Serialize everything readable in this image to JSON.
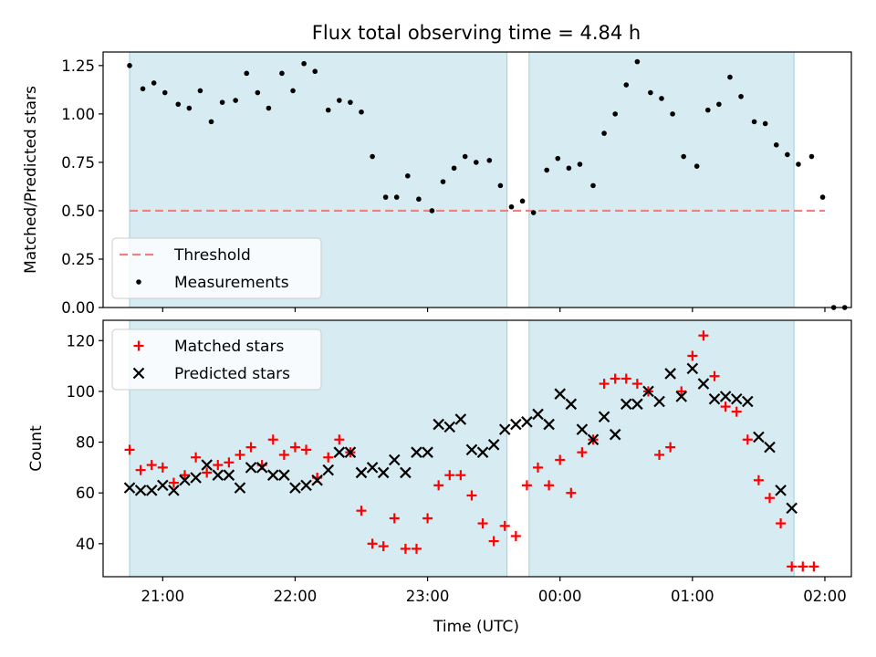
{
  "chart_data": [
    {
      "type": "scatter",
      "title": "Flux total observing time = 4.84 h",
      "ylabel": "Matched/Predicted stars",
      "xlabel": "",
      "xlim": [
        "20:33",
        "02:12"
      ],
      "ylim": [
        0,
        1.32
      ],
      "yticks": [
        "0.00",
        "0.25",
        "0.50",
        "0.75",
        "1.00",
        "1.25"
      ],
      "shaded_intervals": [
        [
          "20:45",
          "23:36"
        ],
        [
          "23:46",
          "01:46"
        ]
      ],
      "threshold": 0.5,
      "threshold_span": [
        "20:45",
        "02:00"
      ],
      "legend": {
        "position": "lower-left",
        "entries": [
          "Threshold",
          "Measurements"
        ]
      },
      "series": [
        {
          "name": "Measurements",
          "style": "dot",
          "color": "#000000",
          "points": [
            [
              "20:45",
              1.25
            ],
            [
              "20:51",
              1.13
            ],
            [
              "20:56",
              1.16
            ],
            [
              "21:01",
              1.11
            ],
            [
              "21:07",
              1.05
            ],
            [
              "21:12",
              1.03
            ],
            [
              "21:17",
              1.12
            ],
            [
              "21:22",
              0.96
            ],
            [
              "21:27",
              1.06
            ],
            [
              "21:33",
              1.07
            ],
            [
              "21:38",
              1.21
            ],
            [
              "21:43",
              1.11
            ],
            [
              "21:48",
              1.03
            ],
            [
              "21:54",
              1.21
            ],
            [
              "21:59",
              1.12
            ],
            [
              "22:04",
              1.26
            ],
            [
              "22:09",
              1.22
            ],
            [
              "22:15",
              1.02
            ],
            [
              "22:20",
              1.07
            ],
            [
              "22:25",
              1.06
            ],
            [
              "22:30",
              1.01
            ],
            [
              "22:35",
              0.78
            ],
            [
              "22:41",
              0.57
            ],
            [
              "22:46",
              0.57
            ],
            [
              "22:51",
              0.68
            ],
            [
              "22:56",
              0.56
            ],
            [
              "23:02",
              0.5
            ],
            [
              "23:07",
              0.65
            ],
            [
              "23:12",
              0.72
            ],
            [
              "23:17",
              0.78
            ],
            [
              "23:22",
              0.75
            ],
            [
              "23:28",
              0.76
            ],
            [
              "23:33",
              0.63
            ],
            [
              "23:38",
              0.52
            ],
            [
              "23:43",
              0.55
            ],
            [
              "23:48",
              0.49
            ],
            [
              "23:54",
              0.71
            ],
            [
              "23:59",
              0.77
            ],
            [
              "00:04",
              0.72
            ],
            [
              "00:09",
              0.74
            ],
            [
              "00:15",
              0.63
            ],
            [
              "00:20",
              0.9
            ],
            [
              "00:25",
              1.0
            ],
            [
              "00:30",
              1.15
            ],
            [
              "00:35",
              1.27
            ],
            [
              "00:41",
              1.11
            ],
            [
              "00:46",
              1.08
            ],
            [
              "00:51",
              1.0
            ],
            [
              "00:56",
              0.78
            ],
            [
              "01:02",
              0.73
            ],
            [
              "01:07",
              1.02
            ],
            [
              "01:12",
              1.05
            ],
            [
              "01:17",
              1.19
            ],
            [
              "01:22",
              1.09
            ],
            [
              "01:28",
              0.96
            ],
            [
              "01:33",
              0.95
            ],
            [
              "01:38",
              0.84
            ],
            [
              "01:43",
              0.79
            ],
            [
              "01:48",
              0.74
            ],
            [
              "01:54",
              0.78
            ],
            [
              "01:59",
              0.57
            ],
            [
              "02:04",
              0.0
            ],
            [
              "02:09",
              0.0
            ]
          ]
        }
      ]
    },
    {
      "type": "scatter",
      "title": "",
      "xlabel": "Time (UTC)",
      "ylabel": "Count",
      "xlim": [
        "20:33",
        "02:12"
      ],
      "ylim": [
        27,
        128
      ],
      "yticks": [
        "40",
        "60",
        "80",
        "100",
        "120"
      ],
      "xticks": [
        "21:00",
        "22:00",
        "23:00",
        "00:00",
        "01:00",
        "02:00"
      ],
      "shaded_intervals": [
        [
          "20:45",
          "23:36"
        ],
        [
          "23:46",
          "01:46"
        ]
      ],
      "legend": {
        "position": "upper-left",
        "entries": [
          "Matched stars",
          "Predicted stars"
        ]
      },
      "series": [
        {
          "name": "Matched stars",
          "marker": "+",
          "color": "#ff0000",
          "points": [
            [
              "20:45",
              77
            ],
            [
              "20:50",
              69
            ],
            [
              "20:55",
              71
            ],
            [
              "21:00",
              70
            ],
            [
              "21:05",
              64
            ],
            [
              "21:10",
              67
            ],
            [
              "21:15",
              74
            ],
            [
              "21:20",
              68
            ],
            [
              "21:25",
              71
            ],
            [
              "21:30",
              72
            ],
            [
              "21:35",
              75
            ],
            [
              "21:40",
              78
            ],
            [
              "21:45",
              71
            ],
            [
              "21:50",
              81
            ],
            [
              "21:55",
              75
            ],
            [
              "22:00",
              78
            ],
            [
              "22:05",
              77
            ],
            [
              "22:10",
              66
            ],
            [
              "22:15",
              74
            ],
            [
              "22:20",
              81
            ],
            [
              "22:25",
              76
            ],
            [
              "22:30",
              53
            ],
            [
              "22:35",
              40
            ],
            [
              "22:40",
              39
            ],
            [
              "22:45",
              50
            ],
            [
              "22:50",
              38
            ],
            [
              "22:55",
              38
            ],
            [
              "23:00",
              50
            ],
            [
              "23:05",
              63
            ],
            [
              "23:10",
              67
            ],
            [
              "23:15",
              67
            ],
            [
              "23:20",
              59
            ],
            [
              "23:25",
              48
            ],
            [
              "23:30",
              41
            ],
            [
              "23:35",
              47
            ],
            [
              "23:40",
              43
            ],
            [
              "23:45",
              63
            ],
            [
              "23:50",
              70
            ],
            [
              "23:55",
              63
            ],
            [
              "00:00",
              73
            ],
            [
              "00:05",
              60
            ],
            [
              "00:10",
              76
            ],
            [
              "00:15",
              81
            ],
            [
              "00:20",
              103
            ],
            [
              "00:25",
              105
            ],
            [
              "00:30",
              105
            ],
            [
              "00:35",
              103
            ],
            [
              "00:40",
              100
            ],
            [
              "00:45",
              75
            ],
            [
              "00:50",
              78
            ],
            [
              "00:55",
              100
            ],
            [
              "01:00",
              114
            ],
            [
              "01:05",
              122
            ],
            [
              "01:10",
              106
            ],
            [
              "01:15",
              94
            ],
            [
              "01:20",
              92
            ],
            [
              "01:25",
              81
            ],
            [
              "01:30",
              65
            ],
            [
              "01:35",
              58
            ],
            [
              "01:40",
              48
            ],
            [
              "01:45",
              31
            ],
            [
              "01:50",
              31
            ],
            [
              "01:55",
              31
            ]
          ]
        },
        {
          "name": "Predicted stars",
          "marker": "x",
          "color": "#000000",
          "points": [
            [
              "20:45",
              62
            ],
            [
              "20:50",
              61
            ],
            [
              "20:55",
              61
            ],
            [
              "21:00",
              63
            ],
            [
              "21:05",
              61
            ],
            [
              "21:10",
              65
            ],
            [
              "21:15",
              66
            ],
            [
              "21:20",
              71
            ],
            [
              "21:25",
              67
            ],
            [
              "21:30",
              67
            ],
            [
              "21:35",
              62
            ],
            [
              "21:40",
              70
            ],
            [
              "21:45",
              70
            ],
            [
              "21:50",
              67
            ],
            [
              "21:55",
              67
            ],
            [
              "22:00",
              62
            ],
            [
              "22:05",
              63
            ],
            [
              "22:10",
              65
            ],
            [
              "22:15",
              69
            ],
            [
              "22:20",
              76
            ],
            [
              "22:25",
              76
            ],
            [
              "22:30",
              68
            ],
            [
              "22:35",
              70
            ],
            [
              "22:40",
              68
            ],
            [
              "22:45",
              73
            ],
            [
              "22:50",
              68
            ],
            [
              "22:55",
              76
            ],
            [
              "23:00",
              76
            ],
            [
              "23:05",
              87
            ],
            [
              "23:10",
              86
            ],
            [
              "23:15",
              89
            ],
            [
              "23:20",
              77
            ],
            [
              "23:25",
              76
            ],
            [
              "23:30",
              79
            ],
            [
              "23:35",
              85
            ],
            [
              "23:40",
              87
            ],
            [
              "23:45",
              88
            ],
            [
              "23:50",
              91
            ],
            [
              "23:55",
              87
            ],
            [
              "00:00",
              99
            ],
            [
              "00:05",
              95
            ],
            [
              "00:10",
              85
            ],
            [
              "00:15",
              81
            ],
            [
              "00:20",
              90
            ],
            [
              "00:25",
              83
            ],
            [
              "00:30",
              95
            ],
            [
              "00:35",
              95
            ],
            [
              "00:40",
              100
            ],
            [
              "00:45",
              96
            ],
            [
              "00:50",
              107
            ],
            [
              "00:55",
              98
            ],
            [
              "01:00",
              109
            ],
            [
              "01:05",
              103
            ],
            [
              "01:10",
              97
            ],
            [
              "01:15",
              98
            ],
            [
              "01:20",
              97
            ],
            [
              "01:25",
              96
            ],
            [
              "01:30",
              82
            ],
            [
              "01:35",
              78
            ],
            [
              "01:40",
              61
            ],
            [
              "01:45",
              54
            ]
          ]
        }
      ]
    }
  ]
}
